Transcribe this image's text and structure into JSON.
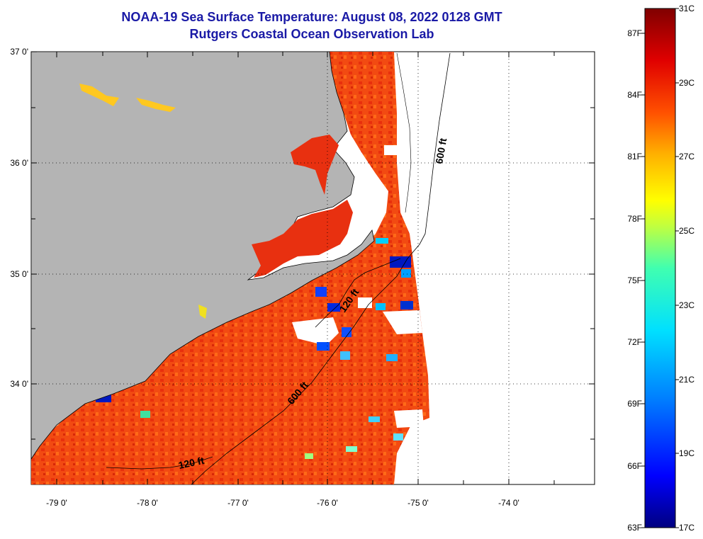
{
  "header": {
    "title": "NOAA-19 Sea Surface Temperature:  August 08, 2022 0128 GMT",
    "subtitle": "Rutgers Coastal Ocean Observation Lab"
  },
  "axes": {
    "latitude_labels": [
      "37 0'",
      "36 0'",
      "35 0'",
      "34 0'"
    ],
    "longitude_labels": [
      "-79 0'",
      "-78 0'",
      "-77 0'",
      "-76 0'",
      "-75 0'",
      "-74 0'"
    ]
  },
  "contours": {
    "depth_120_north": "120 ft",
    "depth_120_south": "120 ft",
    "depth_600_north": "600 ft",
    "depth_600_south": "600 ft"
  },
  "colorbar": {
    "fahrenheit_labels": [
      "87F",
      "84F",
      "81F",
      "78F",
      "75F",
      "72F",
      "69F",
      "66F",
      "63F"
    ],
    "celsius_labels": [
      "31C",
      "29C",
      "27C",
      "25C",
      "23C",
      "21C",
      "19C",
      "17C"
    ],
    "colors": [
      "#000080",
      "#0000ff",
      "#0080ff",
      "#00e0ff",
      "#40ffb0",
      "#c0ff40",
      "#ffff00",
      "#ffb000",
      "#ff5000",
      "#e00000",
      "#800000"
    ]
  },
  "colors": {
    "land": "#b4b4b4",
    "ocean_warm": "#f04010",
    "title": "#1a1aa6"
  }
}
